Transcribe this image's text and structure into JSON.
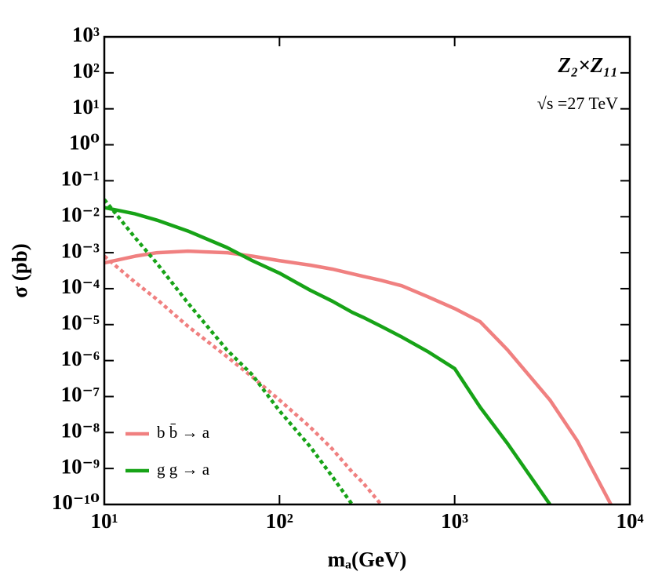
{
  "chart_data": {
    "type": "line",
    "xlabel": "mₐ(GeV)",
    "ylabel": "σ (pb)",
    "annotations": [
      "Z₂×Z₁₁",
      "√s =27 TeV"
    ],
    "log_x": true,
    "log_y": true,
    "xlim": [
      10,
      10000
    ],
    "ylim": [
      1e-10,
      1000
    ],
    "xticks": [
      {
        "value": 10,
        "label": "10¹"
      },
      {
        "value": 100,
        "label": "10²"
      },
      {
        "value": 1000,
        "label": "10³"
      },
      {
        "value": 10000,
        "label": "10⁴"
      }
    ],
    "yticks": [
      {
        "value": 1000,
        "label": "10³"
      },
      {
        "value": 100,
        "label": "10²"
      },
      {
        "value": 10,
        "label": "10¹"
      },
      {
        "value": 1,
        "label": "10⁰"
      },
      {
        "value": 0.1,
        "label": "10⁻¹"
      },
      {
        "value": 0.01,
        "label": "10⁻²"
      },
      {
        "value": 0.001,
        "label": "10⁻³"
      },
      {
        "value": 0.0001,
        "label": "10⁻⁴"
      },
      {
        "value": 1e-05,
        "label": "10⁻⁵"
      },
      {
        "value": 1e-06,
        "label": "10⁻⁶"
      },
      {
        "value": 1e-07,
        "label": "10⁻⁷"
      },
      {
        "value": 1e-08,
        "label": "10⁻⁸"
      },
      {
        "value": 1e-09,
        "label": "10⁻⁹"
      },
      {
        "value": 1e-10,
        "label": "10⁻¹⁰"
      }
    ],
    "legend": "bottom-left",
    "x": [
      10,
      15,
      20,
      30,
      50,
      70,
      100,
      150,
      200,
      260,
      300,
      380,
      500,
      700,
      1000,
      1400,
      2000,
      3500,
      5000,
      7800
    ],
    "series": [
      {
        "name": "b b̄ → a",
        "color": "#f08080",
        "dashed": false,
        "values": [
          0.00052,
          0.0008,
          0.001,
          0.0011,
          0.001,
          0.0008,
          0.0006,
          0.00045,
          0.00035,
          0.00026,
          0.00022,
          0.00017,
          0.00012,
          6e-05,
          2.8e-05,
          1.2e-05,
          2e-06,
          8e-08,
          6e-09,
          1e-10
        ]
      },
      {
        "name": "g g → a",
        "color": "#17a317",
        "dashed": false,
        "values": [
          0.018,
          0.012,
          0.008,
          0.004,
          0.0014,
          0.0006,
          0.00027,
          9e-05,
          4.5e-05,
          2.2e-05,
          1.6e-05,
          9e-06,
          4.5e-06,
          1.8e-06,
          6e-07,
          5e-08,
          5e-09,
          1e-10,
          null,
          null
        ]
      },
      {
        "color": "#f08080",
        "dashed": true,
        "values": [
          0.0008,
          0.00015,
          5e-05,
          9e-06,
          1.3e-06,
          3.5e-07,
          8e-08,
          1.4e-08,
          3.5e-09,
          8e-10,
          4e-10,
          1e-10,
          null,
          null,
          null,
          null,
          null,
          null,
          null,
          null
        ]
      },
      {
        "color": "#17a317",
        "dashed": true,
        "values": [
          0.03,
          0.0026,
          0.0005,
          4e-05,
          2e-06,
          4e-07,
          4e-08,
          4e-09,
          6e-10,
          1e-10,
          null,
          null,
          null,
          null,
          null,
          null,
          null,
          null,
          null,
          null
        ]
      }
    ]
  }
}
